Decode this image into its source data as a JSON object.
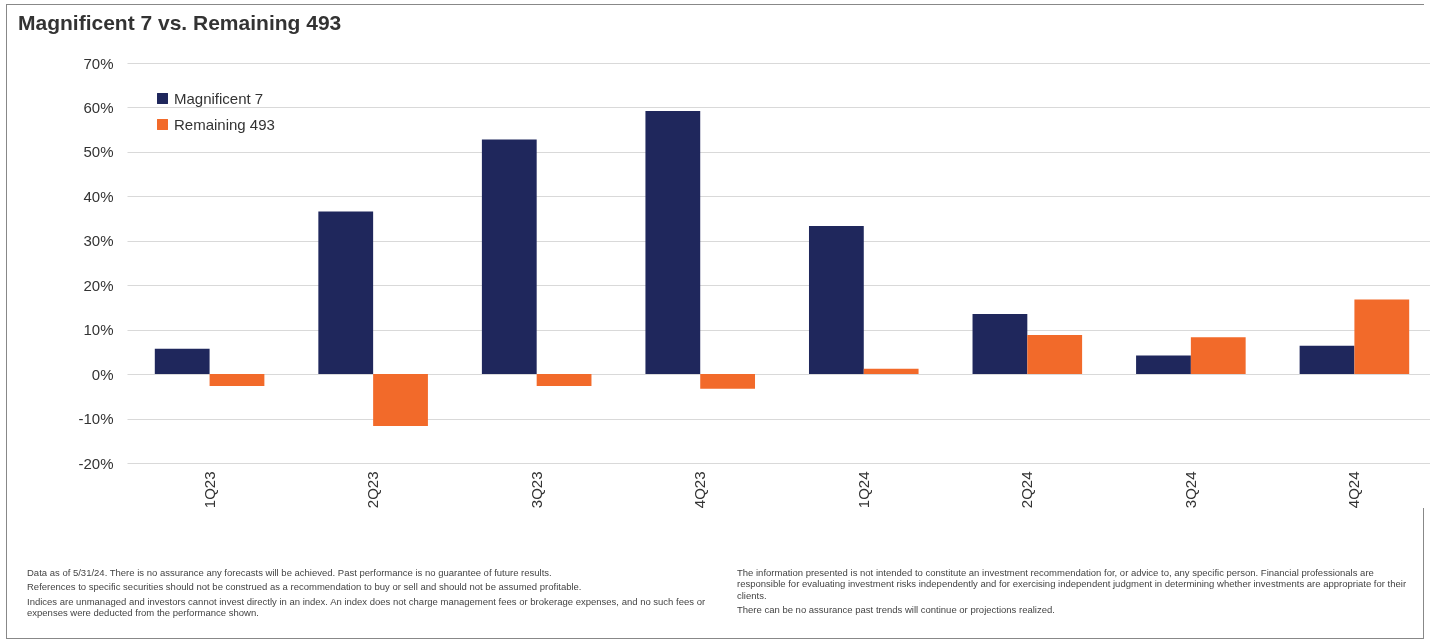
{
  "chart_data": {
    "type": "bar",
    "title": "Magnificent 7 vs. Remaining 493",
    "categories": [
      "1Q23",
      "2Q23",
      "3Q23",
      "4Q23",
      "1Q24",
      "2Q24",
      "3Q24",
      "4Q24"
    ],
    "series": [
      {
        "name": "Magnificent 7",
        "color": "#1f275c",
        "values": [
          5.7,
          36.6,
          52.8,
          59.2,
          33.3,
          13.5,
          4.2,
          6.4
        ]
      },
      {
        "name": "Remaining 493",
        "color": "#f26a2a",
        "values": [
          -2.7,
          -11.7,
          -2.7,
          -3.3,
          1.2,
          8.8,
          8.3,
          16.8
        ]
      }
    ],
    "ylim": [
      -20,
      70
    ],
    "yticks": [
      {
        "value": -20,
        "label": "-20%"
      },
      {
        "value": -10,
        "label": "-10%"
      },
      {
        "value": 0,
        "label": "0%"
      },
      {
        "value": 10,
        "label": "10%"
      },
      {
        "value": 20,
        "label": "20%"
      },
      {
        "value": 30,
        "label": "30%"
      },
      {
        "value": 40,
        "label": "40%"
      },
      {
        "value": 50,
        "label": "50%"
      },
      {
        "value": 60,
        "label": "60%"
      },
      {
        "value": 70,
        "label": "70%"
      }
    ],
    "grid": "y",
    "legend": "top left",
    "annotations": [
      "Data as of 5/31/24. There is no assurance any forecasts will be achieved. Past performance is no guarantee of future results.",
      "References to specific securities should not be construed as a recommendation to buy or sell and should not be assumed profitable.",
      "Indices are unmanaged and investors cannot invest directly in an index. An index does not charge management fees or brokerage expenses, and no such fees or expenses were deducted from the performance shown.",
      "The information presented is not intended to constitute an investment recommendation for, or advice to, any specific person. Financial professionals are responsible for evaluating investment risks independently and for exercising independent judgment in determining whether investments are appropriate for their clients.",
      "There can be no assurance past trends will continue or projections realized."
    ]
  }
}
